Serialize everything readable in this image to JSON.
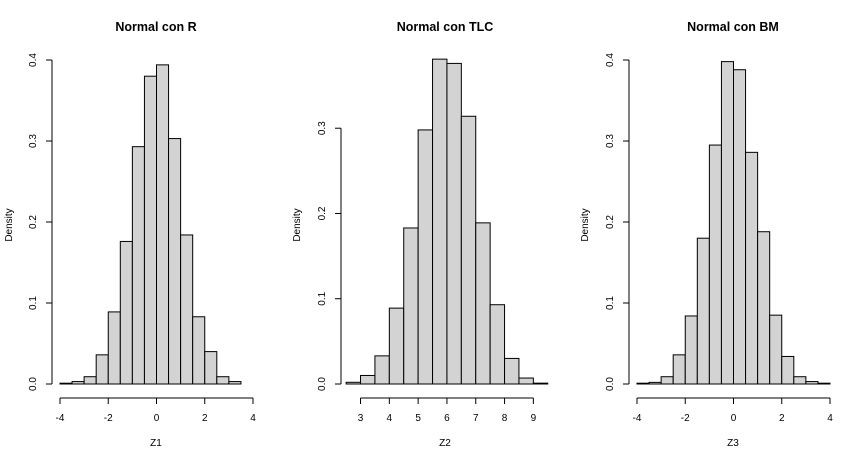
{
  "chart_data": [
    {
      "type": "bar",
      "title": "Normal con R",
      "xlabel": "Z1",
      "ylabel": "Density",
      "bar_fill": "#d3d3d3",
      "xlim": [
        -4,
        4
      ],
      "ylim": [
        0,
        0.4
      ],
      "x_ticks": [
        -4,
        -2,
        0,
        2,
        4
      ],
      "x_tick_labels": [
        "-4",
        "-2",
        "0",
        "2",
        "4"
      ],
      "y_ticks": [
        0,
        0.1,
        0.2,
        0.3,
        0.4
      ],
      "y_tick_labels": [
        "0.0",
        "0.1",
        "0.2",
        "0.3",
        "0.4"
      ],
      "bin_edges": [
        -4,
        -3.5,
        -3,
        -2.5,
        -2,
        -1.5,
        -1,
        -0.5,
        0,
        0.5,
        1,
        1.5,
        2,
        2.5,
        3,
        3.5
      ],
      "values": [
        0.001,
        0.003,
        0.009,
        0.036,
        0.089,
        0.176,
        0.293,
        0.38,
        0.394,
        0.303,
        0.184,
        0.083,
        0.04,
        0.009,
        0.003
      ]
    },
    {
      "type": "bar",
      "title": "Normal con TLC",
      "xlabel": "Z2",
      "ylabel": "Density",
      "bar_fill": "#d3d3d3",
      "xlim": [
        2.6,
        9.3
      ],
      "ylim": [
        0,
        0.38
      ],
      "x_ticks": [
        3,
        4,
        5,
        6,
        7,
        8,
        9
      ],
      "x_tick_labels": [
        "3",
        "4",
        "5",
        "6",
        "7",
        "8",
        "9"
      ],
      "y_ticks": [
        0,
        0.1,
        0.2,
        0.3
      ],
      "y_tick_labels": [
        "0.0",
        "0.1",
        "0.2",
        "0.3"
      ],
      "bin_edges": [
        2.5,
        3,
        3.5,
        4,
        4.5,
        5,
        5.5,
        6,
        6.5,
        7,
        7.5,
        8,
        8.5,
        9,
        9.5
      ],
      "values": [
        0.002,
        0.01,
        0.033,
        0.089,
        0.183,
        0.298,
        0.381,
        0.376,
        0.314,
        0.189,
        0.093,
        0.03,
        0.007,
        0.001
      ]
    },
    {
      "type": "bar",
      "title": "Normal con BM",
      "xlabel": "Z3",
      "ylabel": "Density",
      "bar_fill": "#d3d3d3",
      "xlim": [
        -4,
        4
      ],
      "ylim": [
        0,
        0.4
      ],
      "x_ticks": [
        -4,
        -2,
        0,
        2,
        4
      ],
      "x_tick_labels": [
        "-4",
        "-2",
        "0",
        "2",
        "4"
      ],
      "y_ticks": [
        0,
        0.1,
        0.2,
        0.3,
        0.4
      ],
      "y_tick_labels": [
        "0.0",
        "0.1",
        "0.2",
        "0.3",
        "0.4"
      ],
      "bin_edges": [
        -4,
        -3.5,
        -3,
        -2.5,
        -2,
        -1.5,
        -1,
        -0.5,
        0,
        0.5,
        1,
        1.5,
        2,
        2.5,
        3,
        3.5,
        4
      ],
      "values": [
        0.001,
        0.002,
        0.009,
        0.036,
        0.084,
        0.18,
        0.295,
        0.398,
        0.388,
        0.286,
        0.188,
        0.085,
        0.034,
        0.009,
        0.003,
        0.001
      ]
    }
  ]
}
